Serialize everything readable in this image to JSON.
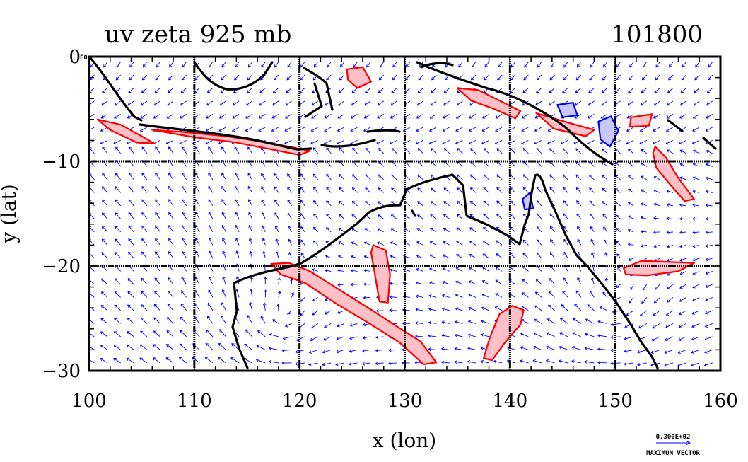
{
  "chart_data": {
    "type": "vector-field",
    "title": "uv zeta 925 mb",
    "time_label": "101800",
    "xlabel": "x (lon)",
    "ylabel": "y (lat)",
    "xlim": [
      100,
      160
    ],
    "ylim": [
      -30,
      0
    ],
    "x_ticks": [
      "100",
      "110",
      "120",
      "130",
      "140",
      "150",
      "160"
    ],
    "y_ticks": [
      "0",
      "−10",
      "−20",
      "−30"
    ],
    "corner_label": "E0",
    "grid": true,
    "reference_vector": {
      "magnitude_label": "0.300E+02",
      "caption": "MAXIMUM VECTOR"
    },
    "colors": {
      "vectors": "#0000ff",
      "positive_vorticity": "#ff0000",
      "positive_fill": "#ffc0c8",
      "negative_vorticity": "#0000ff",
      "negative_fill": "#c8c8ff",
      "coast": "#000000"
    },
    "vorticity_regions": [
      {
        "sign": "positive",
        "points": [
          [
            100.8,
            -6.0
          ],
          [
            103,
            -6.5
          ],
          [
            105,
            -7.6
          ],
          [
            106.2,
            -8.3
          ],
          [
            104.5,
            -8.2
          ],
          [
            102,
            -7.0
          ]
        ]
      },
      {
        "sign": "positive",
        "points": [
          [
            106,
            -7.0
          ],
          [
            110,
            -7.7
          ],
          [
            114,
            -8.2
          ],
          [
            117,
            -8.8
          ],
          [
            120,
            -9.4
          ],
          [
            121,
            -9.0
          ],
          [
            117,
            -8.2
          ],
          [
            113,
            -7.6
          ],
          [
            109,
            -7.2
          ]
        ]
      },
      {
        "sign": "positive",
        "points": [
          [
            117.3,
            -19.8
          ],
          [
            119,
            -19.7
          ],
          [
            121,
            -20.5
          ],
          [
            124,
            -22.4
          ],
          [
            127,
            -24.3
          ],
          [
            129,
            -25.6
          ],
          [
            131.5,
            -27.2
          ],
          [
            133,
            -29.2
          ],
          [
            131.8,
            -29.4
          ],
          [
            129.5,
            -27.3
          ],
          [
            126.5,
            -25.4
          ],
          [
            123.5,
            -23.6
          ],
          [
            120.5,
            -21.6
          ],
          [
            118.2,
            -20.8
          ]
        ]
      },
      {
        "sign": "positive",
        "points": [
          [
            127,
            -18
          ],
          [
            128.2,
            -18.5
          ],
          [
            128.6,
            -20.8
          ],
          [
            128.4,
            -23.5
          ],
          [
            127.6,
            -23.4
          ],
          [
            127.2,
            -21
          ],
          [
            126.8,
            -18.7
          ]
        ]
      },
      {
        "sign": "positive",
        "points": [
          [
            139,
            -24.6
          ],
          [
            140.2,
            -23.8
          ],
          [
            141.3,
            -24.2
          ],
          [
            141,
            -25.6
          ],
          [
            139.6,
            -27.2
          ],
          [
            138.3,
            -29
          ],
          [
            137.5,
            -28.8
          ],
          [
            138.1,
            -26.8
          ]
        ]
      },
      {
        "sign": "positive",
        "points": [
          [
            153.8,
            -8.6
          ],
          [
            154.8,
            -9.6
          ],
          [
            156,
            -11.6
          ],
          [
            157.5,
            -13.6
          ],
          [
            156.6,
            -13.8
          ],
          [
            155.2,
            -12.2
          ],
          [
            153.9,
            -10.6
          ],
          [
            153.6,
            -9.2
          ]
        ]
      },
      {
        "sign": "positive",
        "points": [
          [
            150.8,
            -20.2
          ],
          [
            152.5,
            -19.5
          ],
          [
            155,
            -19.6
          ],
          [
            157.5,
            -19.7
          ],
          [
            156,
            -20.5
          ],
          [
            153,
            -20.9
          ],
          [
            151,
            -20.8
          ]
        ]
      },
      {
        "sign": "positive",
        "points": [
          [
            124.5,
            -1.2
          ],
          [
            126,
            -1.0
          ],
          [
            126.8,
            -2.4
          ],
          [
            125.5,
            -3.0
          ],
          [
            124.6,
            -2.2
          ]
        ]
      },
      {
        "sign": "positive",
        "points": [
          [
            135,
            -3.0
          ],
          [
            137,
            -3.2
          ],
          [
            139,
            -4.2
          ],
          [
            141,
            -5.2
          ],
          [
            140.5,
            -5.9
          ],
          [
            138.5,
            -5.0
          ],
          [
            136.3,
            -4.2
          ]
        ]
      },
      {
        "sign": "positive",
        "points": [
          [
            142.5,
            -5.4
          ],
          [
            145.5,
            -6.3
          ],
          [
            148,
            -7.0
          ],
          [
            147.2,
            -7.6
          ],
          [
            144.2,
            -6.9
          ]
        ]
      },
      {
        "sign": "positive",
        "points": [
          [
            151.5,
            -5.8
          ],
          [
            153.5,
            -5.5
          ],
          [
            153.2,
            -6.6
          ],
          [
            151.4,
            -6.7
          ]
        ]
      },
      {
        "sign": "negative",
        "points": [
          [
            148.4,
            -6.2
          ],
          [
            149.6,
            -5.7
          ],
          [
            150.3,
            -7.1
          ],
          [
            149.5,
            -8.6
          ],
          [
            148.6,
            -7.9
          ]
        ]
      },
      {
        "sign": "negative",
        "points": [
          [
            144.5,
            -4.6
          ],
          [
            146,
            -4.4
          ],
          [
            146.4,
            -5.6
          ],
          [
            145,
            -5.8
          ]
        ]
      },
      {
        "sign": "negative",
        "points": [
          [
            141.2,
            -13.6
          ],
          [
            141.9,
            -13.0
          ],
          [
            142.2,
            -14.5
          ],
          [
            141.4,
            -14.6
          ]
        ]
      }
    ]
  }
}
